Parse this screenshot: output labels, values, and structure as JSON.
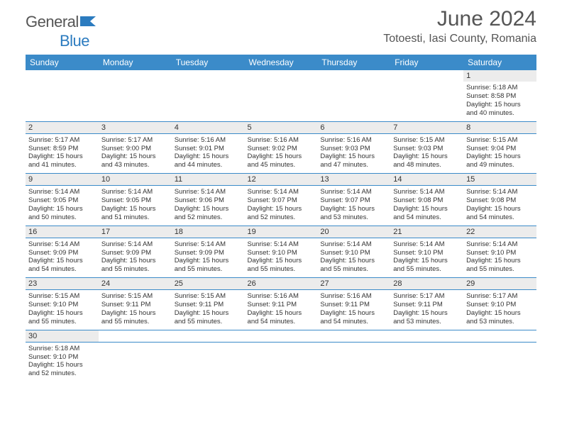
{
  "header": {
    "logo_text_1": "General",
    "logo_text_2": "Blue",
    "month_title": "June 2024",
    "location": "Totoesti, Iasi County, Romania"
  },
  "colors": {
    "header_bg": "#3b8bc9",
    "header_fg": "#ffffff",
    "daynum_bg": "#ececec",
    "border": "#3b8bc9",
    "text": "#333333",
    "logo_gray": "#555555",
    "logo_blue": "#2b7bbf"
  },
  "day_names": [
    "Sunday",
    "Monday",
    "Tuesday",
    "Wednesday",
    "Thursday",
    "Friday",
    "Saturday"
  ],
  "weeks": [
    {
      "daynums": [
        "",
        "",
        "",
        "",
        "",
        "",
        "1"
      ],
      "cells": [
        null,
        null,
        null,
        null,
        null,
        null,
        {
          "sunrise": "5:18 AM",
          "sunset": "8:58 PM",
          "daylight": "15 hours and 40 minutes."
        }
      ]
    },
    {
      "daynums": [
        "2",
        "3",
        "4",
        "5",
        "6",
        "7",
        "8"
      ],
      "cells": [
        {
          "sunrise": "5:17 AM",
          "sunset": "8:59 PM",
          "daylight": "15 hours and 41 minutes."
        },
        {
          "sunrise": "5:17 AM",
          "sunset": "9:00 PM",
          "daylight": "15 hours and 43 minutes."
        },
        {
          "sunrise": "5:16 AM",
          "sunset": "9:01 PM",
          "daylight": "15 hours and 44 minutes."
        },
        {
          "sunrise": "5:16 AM",
          "sunset": "9:02 PM",
          "daylight": "15 hours and 45 minutes."
        },
        {
          "sunrise": "5:16 AM",
          "sunset": "9:03 PM",
          "daylight": "15 hours and 47 minutes."
        },
        {
          "sunrise": "5:15 AM",
          "sunset": "9:03 PM",
          "daylight": "15 hours and 48 minutes."
        },
        {
          "sunrise": "5:15 AM",
          "sunset": "9:04 PM",
          "daylight": "15 hours and 49 minutes."
        }
      ]
    },
    {
      "daynums": [
        "9",
        "10",
        "11",
        "12",
        "13",
        "14",
        "15"
      ],
      "cells": [
        {
          "sunrise": "5:14 AM",
          "sunset": "9:05 PM",
          "daylight": "15 hours and 50 minutes."
        },
        {
          "sunrise": "5:14 AM",
          "sunset": "9:05 PM",
          "daylight": "15 hours and 51 minutes."
        },
        {
          "sunrise": "5:14 AM",
          "sunset": "9:06 PM",
          "daylight": "15 hours and 52 minutes."
        },
        {
          "sunrise": "5:14 AM",
          "sunset": "9:07 PM",
          "daylight": "15 hours and 52 minutes."
        },
        {
          "sunrise": "5:14 AM",
          "sunset": "9:07 PM",
          "daylight": "15 hours and 53 minutes."
        },
        {
          "sunrise": "5:14 AM",
          "sunset": "9:08 PM",
          "daylight": "15 hours and 54 minutes."
        },
        {
          "sunrise": "5:14 AM",
          "sunset": "9:08 PM",
          "daylight": "15 hours and 54 minutes."
        }
      ]
    },
    {
      "daynums": [
        "16",
        "17",
        "18",
        "19",
        "20",
        "21",
        "22"
      ],
      "cells": [
        {
          "sunrise": "5:14 AM",
          "sunset": "9:09 PM",
          "daylight": "15 hours and 54 minutes."
        },
        {
          "sunrise": "5:14 AM",
          "sunset": "9:09 PM",
          "daylight": "15 hours and 55 minutes."
        },
        {
          "sunrise": "5:14 AM",
          "sunset": "9:09 PM",
          "daylight": "15 hours and 55 minutes."
        },
        {
          "sunrise": "5:14 AM",
          "sunset": "9:10 PM",
          "daylight": "15 hours and 55 minutes."
        },
        {
          "sunrise": "5:14 AM",
          "sunset": "9:10 PM",
          "daylight": "15 hours and 55 minutes."
        },
        {
          "sunrise": "5:14 AM",
          "sunset": "9:10 PM",
          "daylight": "15 hours and 55 minutes."
        },
        {
          "sunrise": "5:14 AM",
          "sunset": "9:10 PM",
          "daylight": "15 hours and 55 minutes."
        }
      ]
    },
    {
      "daynums": [
        "23",
        "24",
        "25",
        "26",
        "27",
        "28",
        "29"
      ],
      "cells": [
        {
          "sunrise": "5:15 AM",
          "sunset": "9:10 PM",
          "daylight": "15 hours and 55 minutes."
        },
        {
          "sunrise": "5:15 AM",
          "sunset": "9:11 PM",
          "daylight": "15 hours and 55 minutes."
        },
        {
          "sunrise": "5:15 AM",
          "sunset": "9:11 PM",
          "daylight": "15 hours and 55 minutes."
        },
        {
          "sunrise": "5:16 AM",
          "sunset": "9:11 PM",
          "daylight": "15 hours and 54 minutes."
        },
        {
          "sunrise": "5:16 AM",
          "sunset": "9:11 PM",
          "daylight": "15 hours and 54 minutes."
        },
        {
          "sunrise": "5:17 AM",
          "sunset": "9:11 PM",
          "daylight": "15 hours and 53 minutes."
        },
        {
          "sunrise": "5:17 AM",
          "sunset": "9:10 PM",
          "daylight": "15 hours and 53 minutes."
        }
      ]
    },
    {
      "daynums": [
        "30",
        "",
        "",
        "",
        "",
        "",
        ""
      ],
      "cells": [
        {
          "sunrise": "5:18 AM",
          "sunset": "9:10 PM",
          "daylight": "15 hours and 52 minutes."
        },
        null,
        null,
        null,
        null,
        null,
        null
      ]
    }
  ],
  "labels": {
    "sunrise": "Sunrise: ",
    "sunset": "Sunset: ",
    "daylight": "Daylight: "
  }
}
